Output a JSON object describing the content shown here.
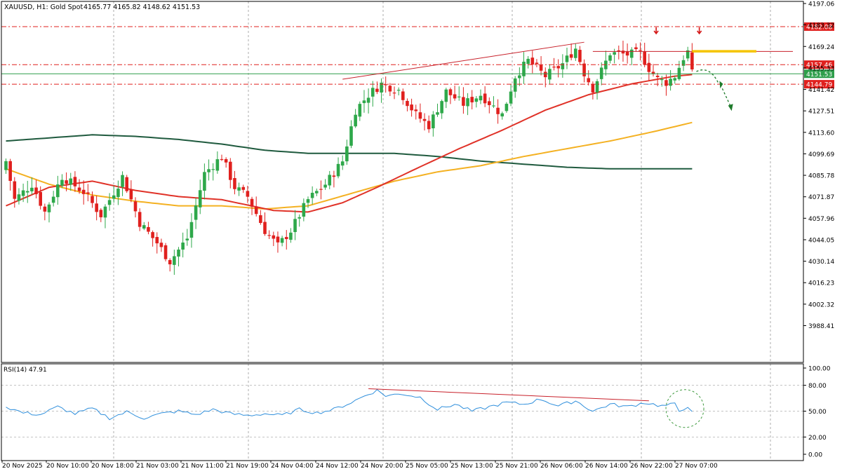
{
  "header": {
    "symbol": "XAUUSD, H1:  Gold Spot",
    "ohlc": "4165.77 4165.82 4148.62 4151.53"
  },
  "price_axis": {
    "ticks": [
      "4197.06",
      "4183.32",
      "4169.24",
      "4155.33",
      "4141.42",
      "4127.51",
      "4113.60",
      "4099.69",
      "4085.78",
      "4071.87",
      "4057.96",
      "4044.05",
      "4030.14",
      "4016.23",
      "4002.32",
      "3988.41"
    ],
    "tick_values": [
      4197.06,
      4183.32,
      4169.24,
      4155.33,
      4141.42,
      4127.51,
      4113.6,
      4099.69,
      4085.78,
      4071.87,
      4057.96,
      4044.05,
      4030.14,
      4016.23,
      4002.32,
      3988.41
    ]
  },
  "levels": [
    {
      "label": "4182.08",
      "value": 4182.08,
      "color": "#e0201e",
      "style": "dashdot"
    },
    {
      "label": "4157.46",
      "value": 4157.46,
      "color": "#e0201e",
      "style": "dashdot"
    },
    {
      "label": "4151.53",
      "value": 4151.53,
      "color": "#2e9e4a",
      "style": "solid"
    },
    {
      "label": "4144.79",
      "value": 4144.79,
      "color": "#e0201e",
      "style": "dashdot"
    }
  ],
  "time_axis": {
    "labels": [
      "20 Nov 2025",
      "20 Nov 10:00",
      "20 Nov 18:00",
      "21 Nov 03:00",
      "21 Nov 11:00",
      "21 Nov 19:00",
      "24 Nov 04:00",
      "24 Nov 12:00",
      "24 Nov 20:00",
      "25 Nov 05:00",
      "25 Nov 13:00",
      "25 Nov 21:00",
      "26 Nov 06:00",
      "26 Nov 14:00",
      "26 Nov 22:00",
      "27 Nov 07:00"
    ]
  },
  "rsi": {
    "label": "RSI(14) 47.91",
    "ticks": [
      "100.00",
      "80.00",
      "50.00",
      "20.00",
      "0.00"
    ],
    "tick_values": [
      100,
      80,
      50,
      20,
      0
    ]
  },
  "colors": {
    "bull": "#2ea84a",
    "bear": "#e0201e",
    "ma_fast": "#e03228",
    "ma_mid": "#f4b122",
    "ma_slow": "#1f5a3e",
    "rsi_line": "#2f8fdc",
    "grid": "#9a9a9a"
  },
  "chart_data": {
    "type": "candlestick",
    "title": "XAUUSD, H1:  Gold Spot",
    "ylim": [
      3977,
      4200
    ],
    "x_labels": [
      "20 Nov 2025",
      "20 Nov 10:00",
      "20 Nov 18:00",
      "21 Nov 03:00",
      "21 Nov 11:00",
      "21 Nov 19:00",
      "24 Nov 04:00",
      "24 Nov 12:00",
      "24 Nov 20:00",
      "25 Nov 05:00",
      "25 Nov 13:00",
      "25 Nov 21:00",
      "26 Nov 06:00",
      "26 Nov 14:00",
      "26 Nov 22:00",
      "27 Nov 07:00"
    ],
    "anchors": [
      {
        "bar": 0,
        "close": 4095
      },
      {
        "bar": 2,
        "close": 4070
      },
      {
        "bar": 6,
        "close": 4080
      },
      {
        "bar": 9,
        "close": 4062
      },
      {
        "bar": 13,
        "close": 4085
      },
      {
        "bar": 18,
        "close": 4075
      },
      {
        "bar": 22,
        "close": 4060
      },
      {
        "bar": 27,
        "close": 4085
      },
      {
        "bar": 31,
        "close": 4055
      },
      {
        "bar": 35,
        "close": 4042
      },
      {
        "bar": 38,
        "close": 4030
      },
      {
        "bar": 42,
        "close": 4045
      },
      {
        "bar": 46,
        "close": 4087
      },
      {
        "bar": 50,
        "close": 4098
      },
      {
        "bar": 53,
        "close": 4078
      },
      {
        "bar": 56,
        "close": 4072
      },
      {
        "bar": 60,
        "close": 4050
      },
      {
        "bar": 63,
        "close": 4040
      },
      {
        "bar": 66,
        "close": 4050
      },
      {
        "bar": 70,
        "close": 4070
      },
      {
        "bar": 74,
        "close": 4080
      },
      {
        "bar": 78,
        "close": 4095
      },
      {
        "bar": 81,
        "close": 4128
      },
      {
        "bar": 84,
        "close": 4138
      },
      {
        "bar": 87,
        "close": 4145
      },
      {
        "bar": 91,
        "close": 4141
      },
      {
        "bar": 95,
        "close": 4125
      },
      {
        "bar": 98,
        "close": 4118
      },
      {
        "bar": 102,
        "close": 4140
      },
      {
        "bar": 106,
        "close": 4132
      },
      {
        "bar": 110,
        "close": 4138
      },
      {
        "bar": 115,
        "close": 4125
      },
      {
        "bar": 118,
        "close": 4150
      },
      {
        "bar": 121,
        "close": 4160
      },
      {
        "bar": 125,
        "close": 4150
      },
      {
        "bar": 129,
        "close": 4158
      },
      {
        "bar": 132,
        "close": 4168
      },
      {
        "bar": 134,
        "close": 4152
      },
      {
        "bar": 136,
        "close": 4142
      },
      {
        "bar": 140,
        "close": 4165
      },
      {
        "bar": 144,
        "close": 4164
      },
      {
        "bar": 147,
        "close": 4165
      },
      {
        "bar": 149,
        "close": 4155
      },
      {
        "bar": 151,
        "close": 4148
      },
      {
        "bar": 153,
        "close": 4146
      },
      {
        "bar": 155,
        "close": 4150
      },
      {
        "bar": 157,
        "close": 4162
      },
      {
        "bar": 158,
        "close": 4165.77
      },
      {
        "bar": 159,
        "close": 4151.53
      }
    ],
    "ma_fast_points": [
      [
        0,
        4066
      ],
      [
        10,
        4078
      ],
      [
        20,
        4082
      ],
      [
        30,
        4076
      ],
      [
        40,
        4072
      ],
      [
        50,
        4070
      ],
      [
        62,
        4063
      ],
      [
        70,
        4062
      ],
      [
        78,
        4068
      ],
      [
        86,
        4078
      ],
      [
        95,
        4090
      ],
      [
        105,
        4103
      ],
      [
        115,
        4115
      ],
      [
        125,
        4128
      ],
      [
        135,
        4138
      ],
      [
        145,
        4145
      ],
      [
        155,
        4150
      ],
      [
        159,
        4151
      ]
    ],
    "ma_mid_points": [
      [
        0,
        4090
      ],
      [
        10,
        4080
      ],
      [
        20,
        4073
      ],
      [
        30,
        4069
      ],
      [
        40,
        4066
      ],
      [
        50,
        4066
      ],
      [
        60,
        4064
      ],
      [
        70,
        4066
      ],
      [
        80,
        4074
      ],
      [
        90,
        4082
      ],
      [
        100,
        4088
      ],
      [
        110,
        4092
      ],
      [
        120,
        4098
      ],
      [
        130,
        4103
      ],
      [
        140,
        4108
      ],
      [
        150,
        4114
      ],
      [
        159,
        4120
      ]
    ],
    "ma_slow_points": [
      [
        0,
        4108
      ],
      [
        10,
        4110
      ],
      [
        20,
        4112
      ],
      [
        30,
        4111
      ],
      [
        40,
        4109
      ],
      [
        50,
        4106
      ],
      [
        60,
        4102
      ],
      [
        70,
        4100
      ],
      [
        80,
        4100
      ],
      [
        90,
        4100
      ],
      [
        100,
        4098
      ],
      [
        110,
        4095
      ],
      [
        120,
        4093
      ],
      [
        130,
        4091
      ],
      [
        140,
        4090
      ],
      [
        150,
        4090
      ],
      [
        159,
        4090
      ]
    ],
    "rsi_anchors": [
      [
        0,
        55
      ],
      [
        4,
        48
      ],
      [
        8,
        46
      ],
      [
        12,
        55
      ],
      [
        16,
        47
      ],
      [
        20,
        53
      ],
      [
        24,
        42
      ],
      [
        28,
        49
      ],
      [
        32,
        42
      ],
      [
        36,
        47
      ],
      [
        40,
        50
      ],
      [
        44,
        46
      ],
      [
        48,
        52
      ],
      [
        52,
        47
      ],
      [
        56,
        45
      ],
      [
        60,
        47
      ],
      [
        64,
        45
      ],
      [
        68,
        52
      ],
      [
        72,
        48
      ],
      [
        76,
        52
      ],
      [
        80,
        60
      ],
      [
        84,
        70
      ],
      [
        86,
        74
      ],
      [
        88,
        68
      ],
      [
        92,
        70
      ],
      [
        96,
        66
      ],
      [
        100,
        52
      ],
      [
        104,
        58
      ],
      [
        108,
        50
      ],
      [
        112,
        55
      ],
      [
        116,
        60
      ],
      [
        120,
        58
      ],
      [
        124,
        64
      ],
      [
        128,
        56
      ],
      [
        132,
        62
      ],
      [
        136,
        50
      ],
      [
        140,
        58
      ],
      [
        144,
        55
      ],
      [
        148,
        60
      ],
      [
        152,
        56
      ],
      [
        155,
        58
      ],
      [
        156,
        50
      ],
      [
        158,
        56
      ],
      [
        159,
        47.91
      ]
    ],
    "rsi_ylim": [
      0,
      100
    ]
  }
}
